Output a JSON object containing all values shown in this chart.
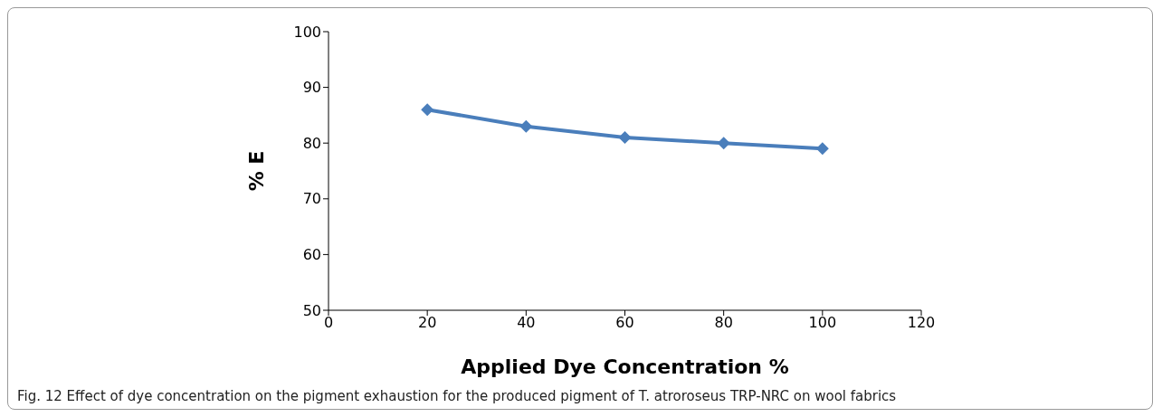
{
  "chart_data": {
    "type": "line",
    "xlabel": "Applied Dye Concentration %",
    "ylabel": "% E",
    "x": [
      20,
      40,
      60,
      80,
      100
    ],
    "series": [
      {
        "color": "#4a7ebb",
        "values": [
          86,
          83,
          81,
          80,
          79
        ]
      }
    ],
    "xlim": [
      0,
      120
    ],
    "xticks": [
      0,
      20,
      40,
      60,
      80,
      100,
      120
    ],
    "ylim": [
      50,
      100
    ],
    "yticks": [
      50,
      60,
      70,
      80,
      90,
      100
    ],
    "grid": false,
    "legend": false,
    "marker": "diamond",
    "line_style": "solid",
    "annotations": [
      "Fig. 12  Effect of dye concentration on the pigment exhaustion for the produced pigment of T. atroroseus TRP-NRC on wool fabrics"
    ]
  }
}
